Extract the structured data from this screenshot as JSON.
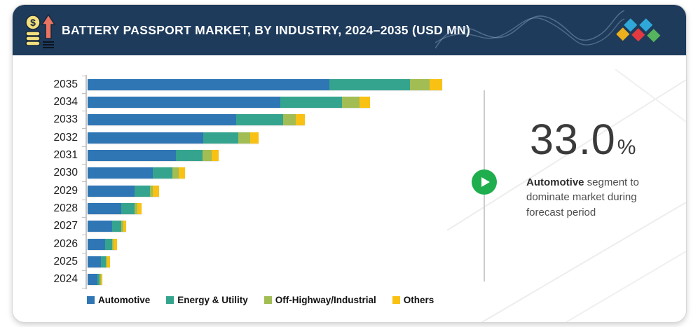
{
  "header": {
    "title": "BATTERY PASSPORT MARKET, BY INDUSTRY, 2024–2035 (USD MN)",
    "icon": "coins-growth-arrow-icon",
    "background_color": "#1e3b5c",
    "logo_diamond_colors": [
      "#eab11d",
      "#2fa7d9",
      "#e23a40",
      "#2fa7d9",
      "#56b45c"
    ]
  },
  "chart_data": {
    "type": "bar",
    "orientation": "horizontal",
    "stacked": true,
    "title": "BATTERY PASSPORT MARKET, BY INDUSTRY, 2024–2035 (USD MN)",
    "units": "USD MN (value axis not labeled; values estimated in relative units)",
    "categories": [
      "2035",
      "2034",
      "2033",
      "2032",
      "2031",
      "2030",
      "2029",
      "2028",
      "2027",
      "2026",
      "2025",
      "2024"
    ],
    "series": [
      {
        "name": "Automotive",
        "color": "#2f76b5",
        "values": [
          345,
          275,
          212,
          165,
          126,
          93,
          67,
          48,
          35,
          25,
          19,
          14
        ]
      },
      {
        "name": "Energy & Utility",
        "color": "#35a48e",
        "values": [
          115,
          88,
          67,
          50,
          38,
          28,
          22,
          19,
          13,
          10,
          7,
          3
        ]
      },
      {
        "name": "Off-Highway/Industrial",
        "color": "#a2bd53",
        "values": [
          28,
          25,
          18,
          17,
          13,
          9,
          4,
          4,
          3,
          2,
          2,
          1.5
        ]
      },
      {
        "name": "Others",
        "color": "#f9c113",
        "values": [
          18,
          15,
          13,
          12,
          10,
          9,
          9,
          6,
          4,
          5,
          4,
          2.5
        ]
      }
    ],
    "legend_position": "bottom",
    "grid": false
  },
  "callout": {
    "stat_value": "33.0",
    "stat_unit": "%",
    "text_bold": "Automotive",
    "text_rest": " segment to dominate market during forecast period",
    "play_icon_color": "#1fae4e"
  }
}
